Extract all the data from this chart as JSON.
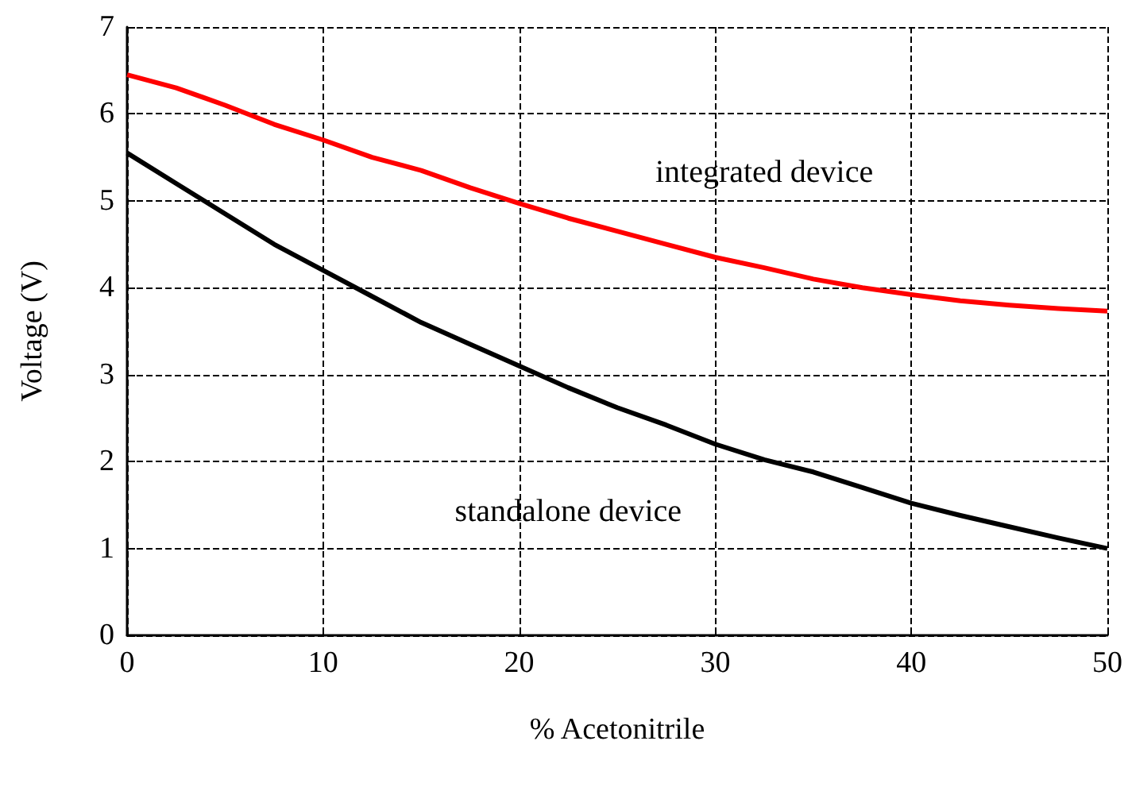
{
  "chart_data": {
    "type": "line",
    "xlabel": "% Acetonitrile",
    "ylabel": "Voltage (V)",
    "x": [
      0,
      2.5,
      5,
      7.5,
      10,
      12.5,
      15,
      17.5,
      20,
      22.5,
      25,
      27.5,
      30,
      32.5,
      35,
      37.5,
      40,
      42.5,
      45,
      47.5,
      50
    ],
    "series": [
      {
        "name": "integrated device",
        "color": "#ff0000",
        "values": [
          6.45,
          6.3,
          6.1,
          5.88,
          5.7,
          5.5,
          5.35,
          5.15,
          4.97,
          4.8,
          4.65,
          4.5,
          4.35,
          4.23,
          4.1,
          4.0,
          3.92,
          3.85,
          3.8,
          3.76,
          3.73
        ]
      },
      {
        "name": "standalone device",
        "color": "#000000",
        "values": [
          5.55,
          5.2,
          4.85,
          4.5,
          4.2,
          3.9,
          3.6,
          3.35,
          3.1,
          2.85,
          2.62,
          2.42,
          2.2,
          2.02,
          1.88,
          1.7,
          1.52,
          1.38,
          1.25,
          1.12,
          1.0
        ]
      }
    ],
    "xlim": [
      0,
      50
    ],
    "xticks": [
      0,
      10,
      20,
      30,
      40,
      50
    ],
    "ylim": [
      0,
      7
    ],
    "yticks": [
      0,
      1,
      2,
      3,
      4,
      5,
      6,
      7
    ],
    "grid": true,
    "marker": "none",
    "line_style": "solid"
  }
}
